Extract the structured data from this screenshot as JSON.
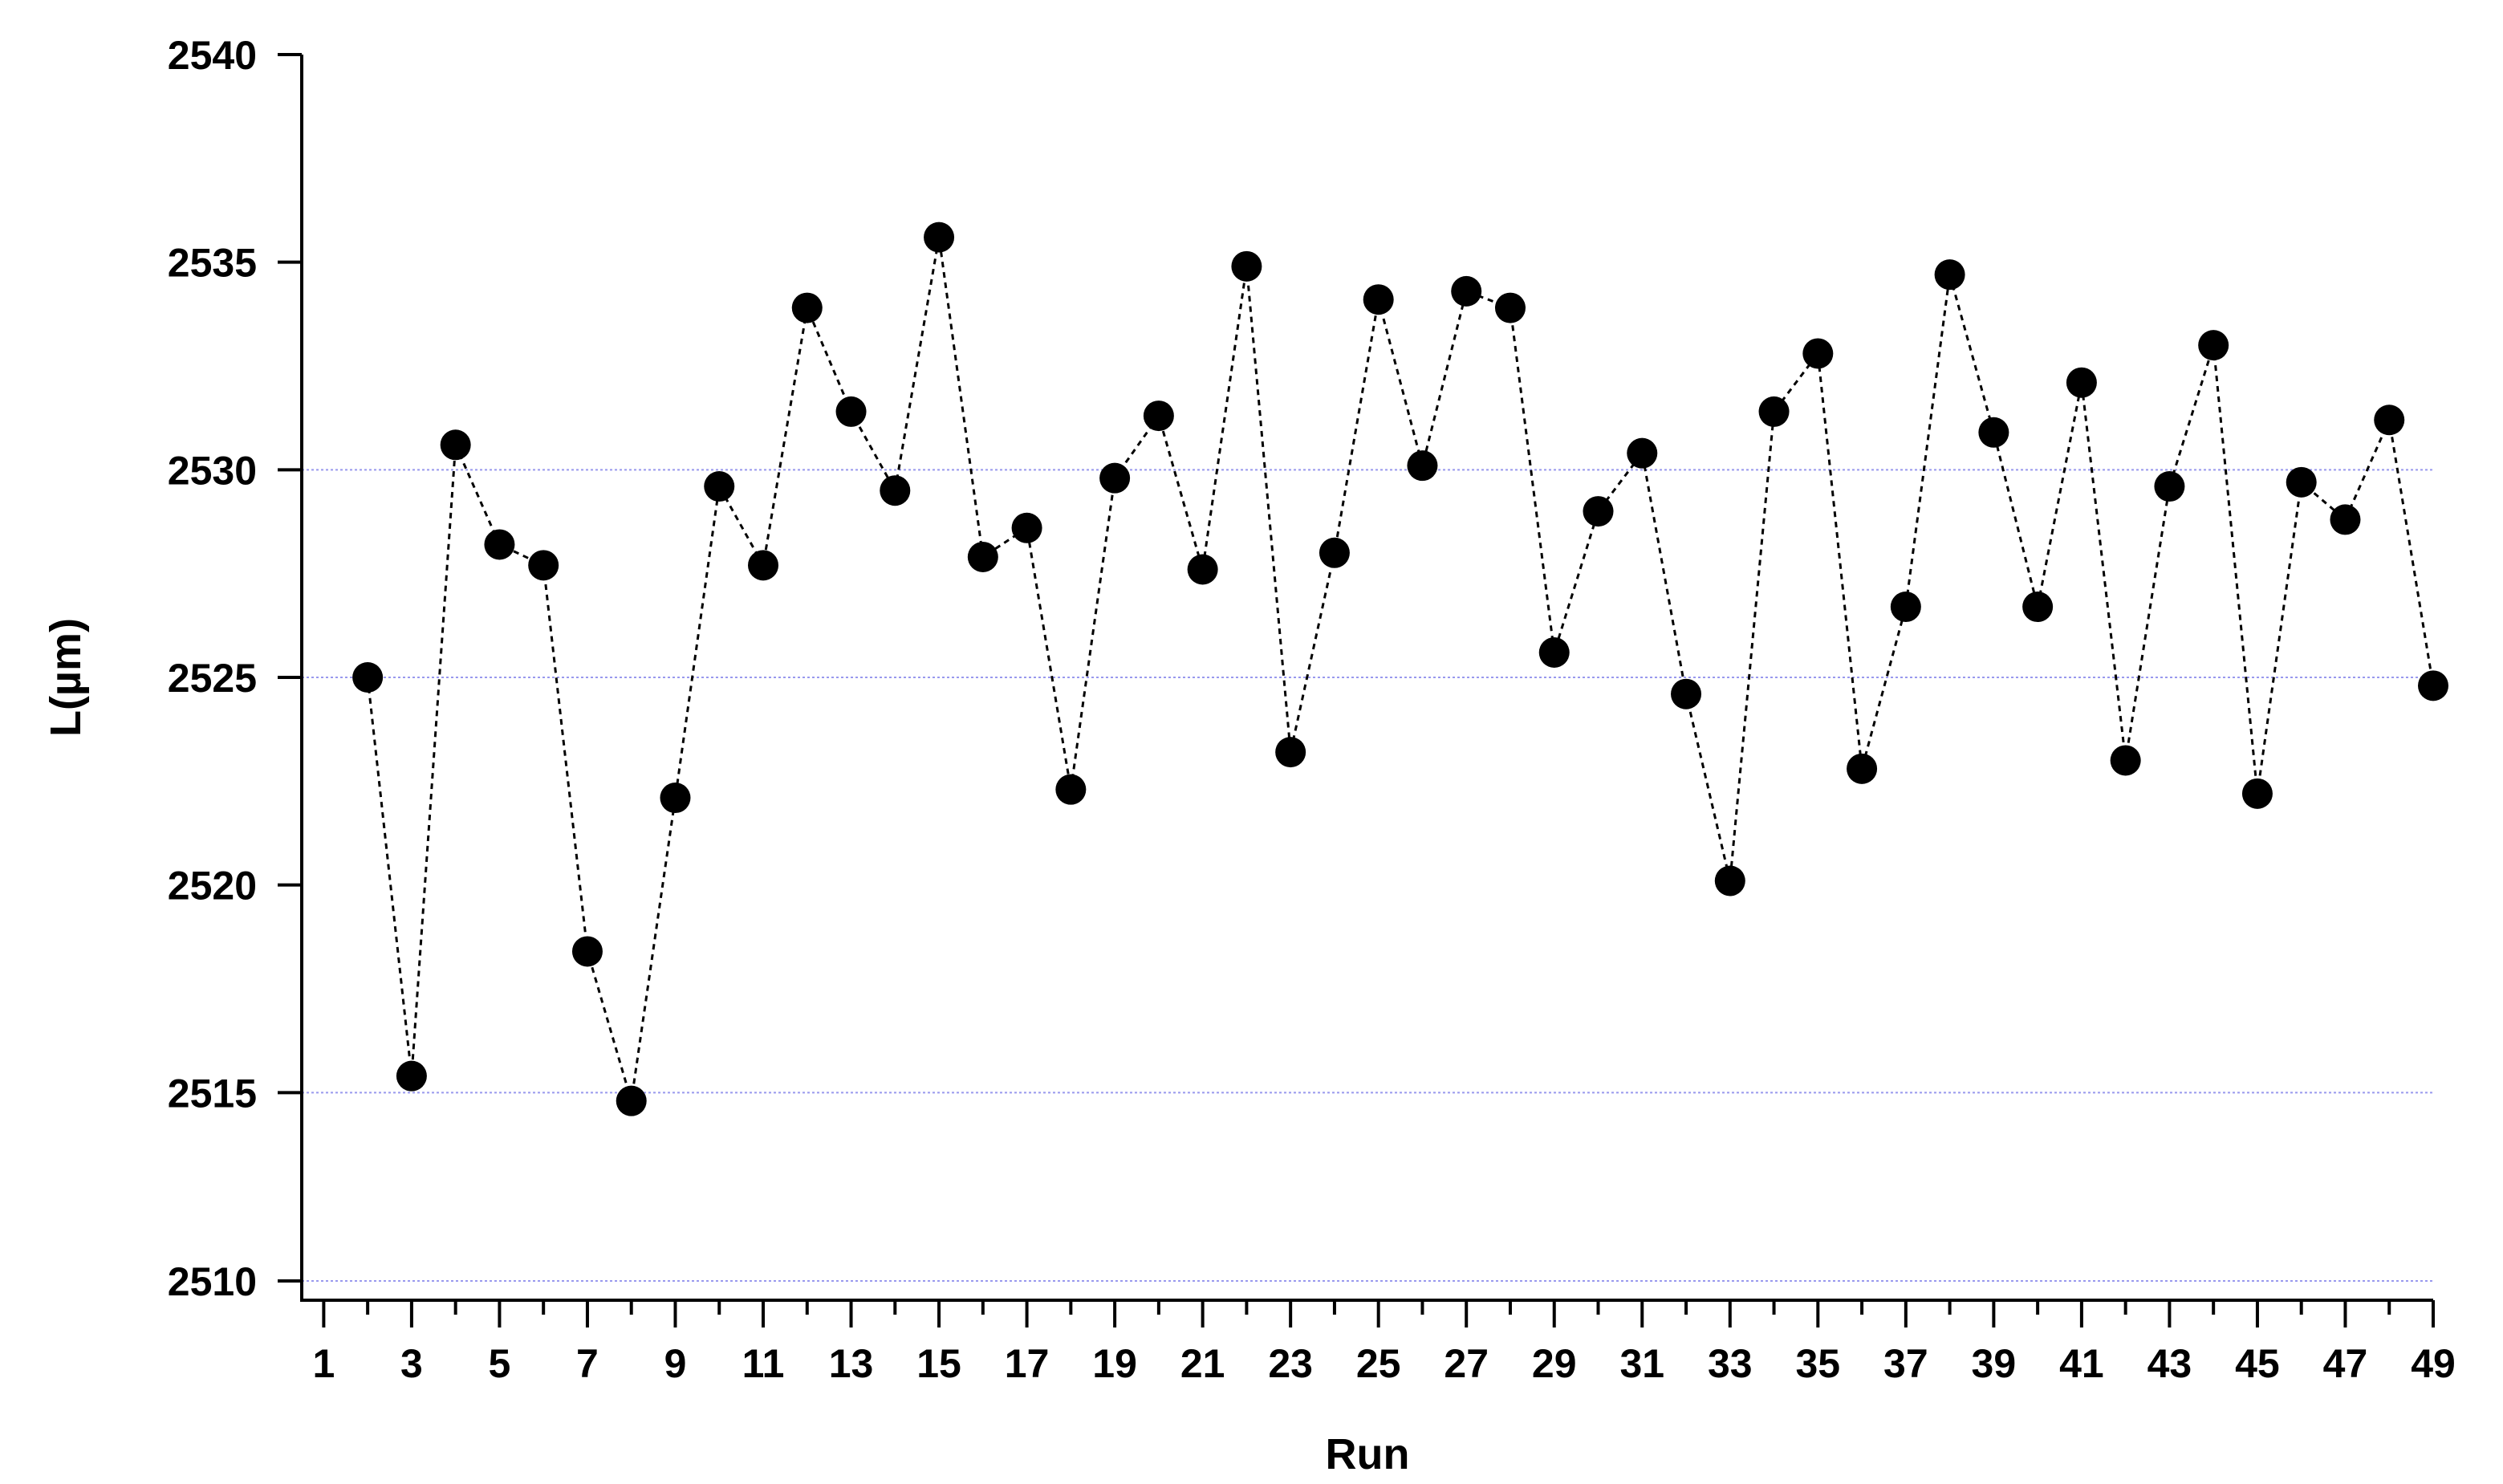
{
  "chart_data": {
    "type": "scatter",
    "title": "",
    "xlabel": "Run",
    "ylabel": "L(µm)",
    "xlim": [
      0.5,
      49
    ],
    "ylim": [
      2510,
      2540
    ],
    "xticks": [
      1,
      3,
      5,
      7,
      9,
      11,
      13,
      15,
      17,
      19,
      21,
      23,
      25,
      27,
      29,
      31,
      33,
      35,
      37,
      39,
      41,
      43,
      45,
      47,
      49
    ],
    "yticks": [
      2510,
      2515,
      2520,
      2525,
      2530,
      2535,
      2540
    ],
    "grid_y": [
      2510,
      2515,
      2525,
      2530
    ],
    "grid_color": "#9999ee",
    "marker_color": "#000000",
    "line_style": "dashed",
    "x": [
      2,
      3,
      4,
      5,
      6,
      7,
      8,
      9,
      10,
      11,
      12,
      13,
      14,
      15,
      16,
      17,
      18,
      19,
      20,
      21,
      22,
      23,
      24,
      25,
      26,
      27,
      28,
      29,
      30,
      31,
      32,
      33,
      34,
      35,
      36,
      37,
      38,
      39,
      40,
      41,
      42,
      43,
      44,
      45,
      46,
      47,
      48,
      49
    ],
    "y": [
      2525.0,
      2515.4,
      2530.6,
      2528.2,
      2527.7,
      2518.4,
      2514.8,
      2522.1,
      2529.6,
      2527.7,
      2533.9,
      2531.4,
      2529.5,
      2535.6,
      2527.9,
      2528.6,
      2522.3,
      2529.8,
      2531.3,
      2527.6,
      2534.9,
      2523.2,
      2528.0,
      2534.1,
      2530.1,
      2534.3,
      2533.9,
      2525.6,
      2529.0,
      2530.4,
      2524.6,
      2520.1,
      2531.4,
      2532.8,
      2522.8,
      2526.7,
      2534.7,
      2530.9,
      2526.7,
      2532.1,
      2523.0,
      2529.6,
      2533.0,
      2522.2,
      2529.7,
      2528.8,
      2531.2,
      2524.8
    ]
  }
}
